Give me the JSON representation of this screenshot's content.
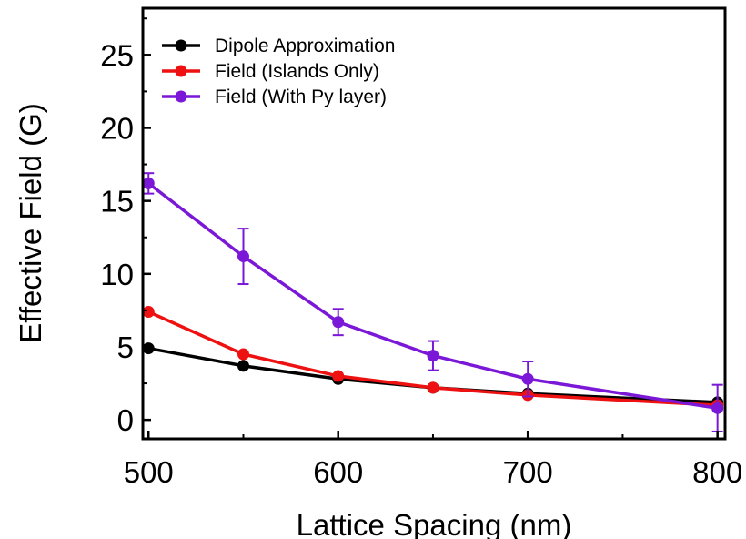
{
  "chart_data": {
    "type": "line",
    "xlabel": "Lattice Spacing (nm)",
    "ylabel": "Effective Field (G)",
    "xlim": [
      497,
      804
    ],
    "ylim": [
      -1.3,
      28.2
    ],
    "xticks": [
      "500",
      "600",
      "700",
      "800"
    ],
    "xtick_values": [
      500,
      600,
      700,
      800
    ],
    "yticks": [
      "0",
      "5",
      "10",
      "15",
      "20",
      "25"
    ],
    "ytick_values": [
      0,
      5,
      10,
      15,
      20,
      25
    ],
    "legend_position": "top-left",
    "grid": false,
    "series": [
      {
        "name": "Dipole Approximation",
        "color": "#000000",
        "x": [
          500,
          550,
          600,
          650,
          700,
          800
        ],
        "y": [
          4.9,
          3.7,
          2.8,
          2.2,
          1.8,
          1.2
        ],
        "err": null
      },
      {
        "name": "Field (Islands Only)",
        "color": "#ee1111",
        "x": [
          500,
          550,
          600,
          650,
          700,
          800
        ],
        "y": [
          7.4,
          4.5,
          3.0,
          2.2,
          1.7,
          1.0
        ],
        "err": null
      },
      {
        "name": "Field (With Py layer)",
        "color": "#7b17d6",
        "x": [
          500,
          550,
          600,
          650,
          700,
          800
        ],
        "y": [
          16.2,
          11.2,
          6.7,
          4.4,
          2.8,
          0.8
        ],
        "err": [
          0.7,
          1.9,
          0.9,
          1.0,
          1.2,
          1.6
        ]
      }
    ]
  }
}
